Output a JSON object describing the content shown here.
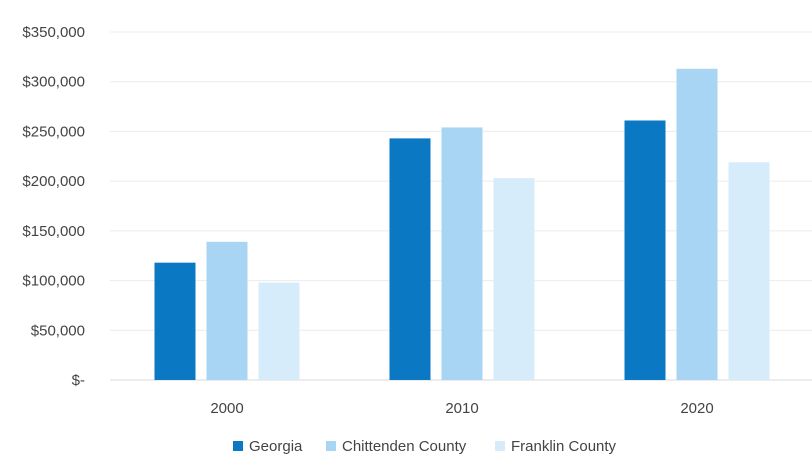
{
  "chart_data": {
    "type": "bar",
    "title": "",
    "xlabel": "",
    "ylabel": "",
    "categories": [
      "2000",
      "2010",
      "2020"
    ],
    "series": [
      {
        "name": "Georgia",
        "color": "#0a78c3",
        "values": [
          118000,
          243000,
          261000
        ]
      },
      {
        "name": "Chittenden County",
        "color": "#a7d5f3",
        "values": [
          139000,
          254000,
          313000
        ]
      },
      {
        "name": "Franklin County",
        "color": "#d6ecfa",
        "values": [
          98000,
          203000,
          219000
        ]
      }
    ],
    "ylim": [
      0,
      350000
    ],
    "yticks": [
      0,
      50000,
      100000,
      150000,
      200000,
      250000,
      300000,
      350000
    ],
    "ytick_labels": [
      "$-",
      "$50,000",
      "$100,000",
      "$150,000",
      "$200,000",
      "$250,000",
      "$300,000",
      "$350,000"
    ],
    "grid": true,
    "legend_position": "bottom"
  }
}
